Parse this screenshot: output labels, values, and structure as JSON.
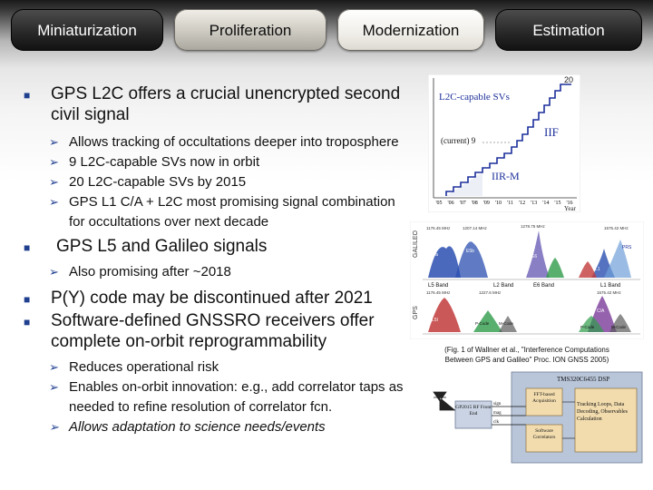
{
  "tabs": [
    {
      "label": "Miniaturization",
      "state": "dark"
    },
    {
      "label": "Proliferation",
      "state": "normal"
    },
    {
      "label": "Modernization",
      "state": "active"
    },
    {
      "label": "Estimation",
      "state": "dark"
    }
  ],
  "content": {
    "b1": {
      "text": "GPS L2C offers a crucial unencrypted second civil signal",
      "subs": [
        "Allows tracking of occultations deeper into troposphere",
        "9 L2C-capable SVs now in orbit",
        "20 L2C-capable SVs by 2015",
        "GPS L1 C/A + L2C most promising signal combination for occultations over next decade"
      ]
    },
    "b2": {
      "text": "GPS L5 and Galileo signals",
      "subs": [
        "Also promising after ~2018"
      ]
    },
    "b3": {
      "text": "P(Y) code may be discontinued after 2021"
    },
    "b4": {
      "text": "Software-defined GNSSRO receivers offer complete on-orbit reprogrammability",
      "subs": [
        "Reduces operational risk",
        "Enables on-orbit innovation: e.g., add correlator taps as needed to refine resolution of correlator fcn.",
        "Allows adaptation to science needs/events"
      ]
    }
  },
  "fig_l2c": {
    "title": "L2C-capable SVs",
    "top_value": "20",
    "current_label": "(current) 9",
    "block_iif": "IIF",
    "block_iirm": "IIR-M",
    "x_ticks": [
      "'05",
      "'06",
      "'07",
      "'08",
      "'09",
      "'10",
      "'11",
      "'12",
      "'13",
      "'14",
      "'15",
      "'16"
    ],
    "x_label": "Year"
  },
  "fig_spectra": {
    "y_label_top": "GALILEO",
    "y_label_bottom": "GPS",
    "bands": [
      "L5 Band",
      "L2 Band",
      "E6 Band",
      "L1 Band"
    ],
    "freq_top": [
      "1176.45 MHz",
      "1207.14 MHz",
      "1278.75 MHz",
      "1575.42 MHz"
    ],
    "freq_bottom": [
      "1176.45 MHz",
      "1227.6 MHz",
      "1575.42 MHz"
    ],
    "labels_top": [
      "E5a",
      "E5b",
      "E6",
      "L1",
      "PRS"
    ],
    "labels_bottom": [
      "L5I",
      "P-Code",
      "M-Code",
      "C/A",
      "P-Code",
      "M-Code"
    ]
  },
  "caption": {
    "line1": "(Fig. 1 of Wallner et al., \"Interference Computations",
    "line2": "Between GPS and Galileo\" Proc. ION GNSS 2005)"
  },
  "fig_receiver": {
    "title": "TMS320C6455 DSP",
    "rf_box": "GP2015 RF Front End",
    "signals": [
      "sign",
      "mag",
      "clk"
    ],
    "block1": "FFT-based Acquisition",
    "block2": "Software Correlators",
    "block3": "Tracking Loops, Data Decoding, Observables Calculation"
  },
  "colors": {
    "bullet": "#1f3f8f",
    "staircase": "#1c2f9a",
    "galileo": "#2b4fb0",
    "gps": "#c23b3b"
  }
}
